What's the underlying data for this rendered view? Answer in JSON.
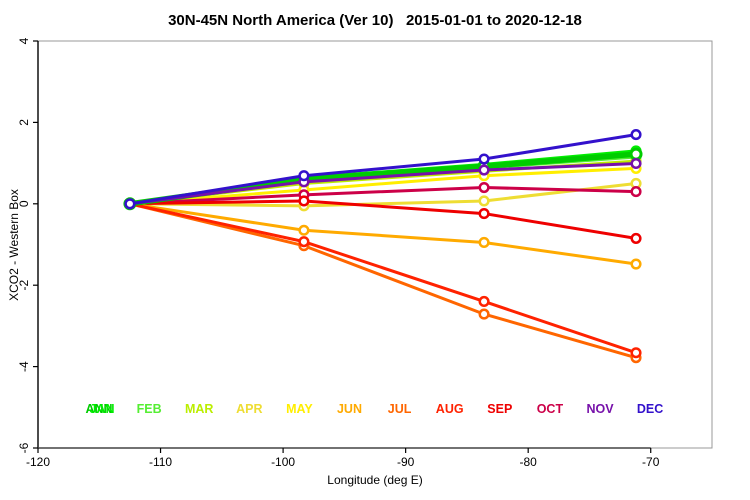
{
  "title": "30N-45N North America (Ver 10)   2015-01-01 to 2020-12-18",
  "chart_data": {
    "type": "line",
    "title": "30N-45N North America (Ver 10)   2015-01-01 to 2020-12-18",
    "xlabel": "Longitude (deg E)",
    "ylabel": "XCO2 - Western Box",
    "xlim": [
      -120,
      -65
    ],
    "ylim": [
      -6,
      4
    ],
    "xticks": [
      -120,
      -110,
      -100,
      -90,
      -80,
      -70
    ],
    "yticks": [
      -6,
      -4,
      -2,
      0,
      2,
      4
    ],
    "grid": false,
    "legend_position": "inside-bottom",
    "marker": "open-circle-white-fill",
    "x": [
      -112.5,
      -98.3,
      -83.6,
      -71.2
    ],
    "series": [
      {
        "name": "ANN",
        "color": "#00cc00",
        "width": 5.5,
        "values": [
          0,
          0.6,
          0.92,
          1.22
        ]
      },
      {
        "name": "JAN",
        "color": "#00ee00",
        "width": 3,
        "values": [
          0,
          0.64,
          0.97,
          1.3
        ]
      },
      {
        "name": "FEB",
        "color": "#55ee33",
        "width": 3,
        "values": [
          0,
          0.57,
          0.88,
          1.15
        ]
      },
      {
        "name": "MAR",
        "color": "#bbee00",
        "width": 3,
        "values": [
          0,
          0.5,
          0.8,
          1.05
        ]
      },
      {
        "name": "APR",
        "color": "#eedd33",
        "width": 3,
        "values": [
          0,
          -0.05,
          0.07,
          0.5
        ]
      },
      {
        "name": "MAY",
        "color": "#ffee00",
        "width": 3,
        "values": [
          0,
          0.34,
          0.69,
          0.87
        ]
      },
      {
        "name": "JUN",
        "color": "#ffaa00",
        "width": 3,
        "values": [
          0,
          -0.65,
          -0.95,
          -1.48
        ]
      },
      {
        "name": "JUL",
        "color": "#ff6600",
        "width": 3,
        "values": [
          0,
          -1.03,
          -2.71,
          -3.78
        ]
      },
      {
        "name": "AUG",
        "color": "#ff2200",
        "width": 3,
        "values": [
          0,
          -0.93,
          -2.4,
          -3.66
        ]
      },
      {
        "name": "SEP",
        "color": "#ee0000",
        "width": 3,
        "values": [
          0,
          0.07,
          -0.24,
          -0.85
        ]
      },
      {
        "name": "OCT",
        "color": "#cc0048",
        "width": 3,
        "values": [
          0,
          0.22,
          0.4,
          0.3
        ]
      },
      {
        "name": "NOV",
        "color": "#7711aa",
        "width": 3,
        "values": [
          0,
          0.54,
          0.83,
          0.99
        ]
      },
      {
        "name": "DEC",
        "color": "#3311cc",
        "width": 3,
        "values": [
          0,
          0.69,
          1.1,
          1.7
        ]
      }
    ],
    "draw_order": [
      "FEB",
      "MAR",
      "APR",
      "MAY",
      "OCT",
      "SEP",
      "JUN",
      "JUL",
      "AUG",
      "JAN",
      "ANN",
      "NOV",
      "DEC"
    ],
    "legend": [
      {
        "label": "ANN",
        "color": "#00cc00",
        "slot": 0,
        "dx": 0
      },
      {
        "label": "JAN",
        "color": "#00ee00",
        "slot": 0,
        "dx": 3
      },
      {
        "label": "FEB",
        "color": "#55ee33",
        "slot": 1,
        "dx": 0
      },
      {
        "label": "MAR",
        "color": "#bbee00",
        "slot": 2,
        "dx": 0
      },
      {
        "label": "APR",
        "color": "#eedd33",
        "slot": 3,
        "dx": 0
      },
      {
        "label": "MAY",
        "color": "#ffee00",
        "slot": 4,
        "dx": 0
      },
      {
        "label": "JUN",
        "color": "#ffaa00",
        "slot": 5,
        "dx": 0
      },
      {
        "label": "JUL",
        "color": "#ff6600",
        "slot": 6,
        "dx": 0
      },
      {
        "label": "AUG",
        "color": "#ff2200",
        "slot": 7,
        "dx": 0
      },
      {
        "label": "SEP",
        "color": "#ee0000",
        "slot": 8,
        "dx": 0
      },
      {
        "label": "OCT",
        "color": "#cc0048",
        "slot": 9,
        "dx": 0
      },
      {
        "label": "NOV",
        "color": "#7711aa",
        "slot": 10,
        "dx": 0
      },
      {
        "label": "DEC",
        "color": "#3311cc",
        "slot": 11,
        "dx": 0
      }
    ],
    "axis_color": "#000000",
    "box_color": "#999999"
  }
}
